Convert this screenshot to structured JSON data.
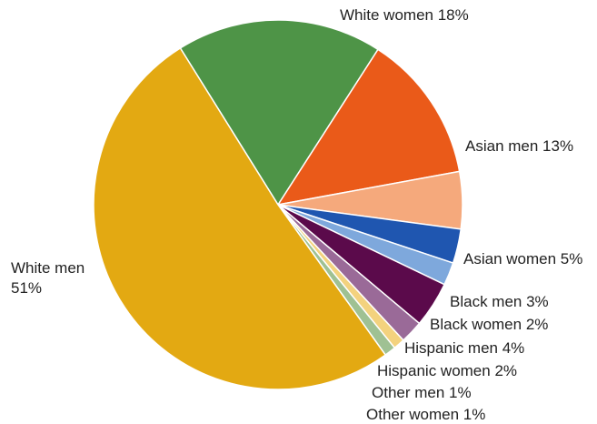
{
  "chart_data": {
    "type": "pie",
    "title": "",
    "legend": "none",
    "slices": [
      {
        "label": "White women",
        "value": 18,
        "color": "#4e9447",
        "text": "White women 18%"
      },
      {
        "label": "Asian men",
        "value": 13,
        "color": "#ea5a19",
        "text": "Asian men 13%"
      },
      {
        "label": "Asian women",
        "value": 5,
        "color": "#f5a97c",
        "text": "Asian women 5%"
      },
      {
        "label": "Black men",
        "value": 3,
        "color": "#1f56b0",
        "text": "Black men 3%"
      },
      {
        "label": "Black women",
        "value": 2,
        "color": "#7ea8dc",
        "text": "Black women 2%"
      },
      {
        "label": "Hispanic men",
        "value": 4,
        "color": "#5b0a4b",
        "text": "Hispanic men 4%"
      },
      {
        "label": "Hispanic women",
        "value": 2,
        "color": "#9a6a98",
        "text": "Hispanic women 2%"
      },
      {
        "label": "Other men",
        "value": 1,
        "color": "#f3d27e",
        "text": "Other men 1%"
      },
      {
        "label": "Other women",
        "value": 1,
        "color": "#9fc193",
        "text": "Other women 1%"
      },
      {
        "label": "White men",
        "value": 51,
        "color": "#e3a912",
        "text": "White men\n51%"
      }
    ]
  }
}
